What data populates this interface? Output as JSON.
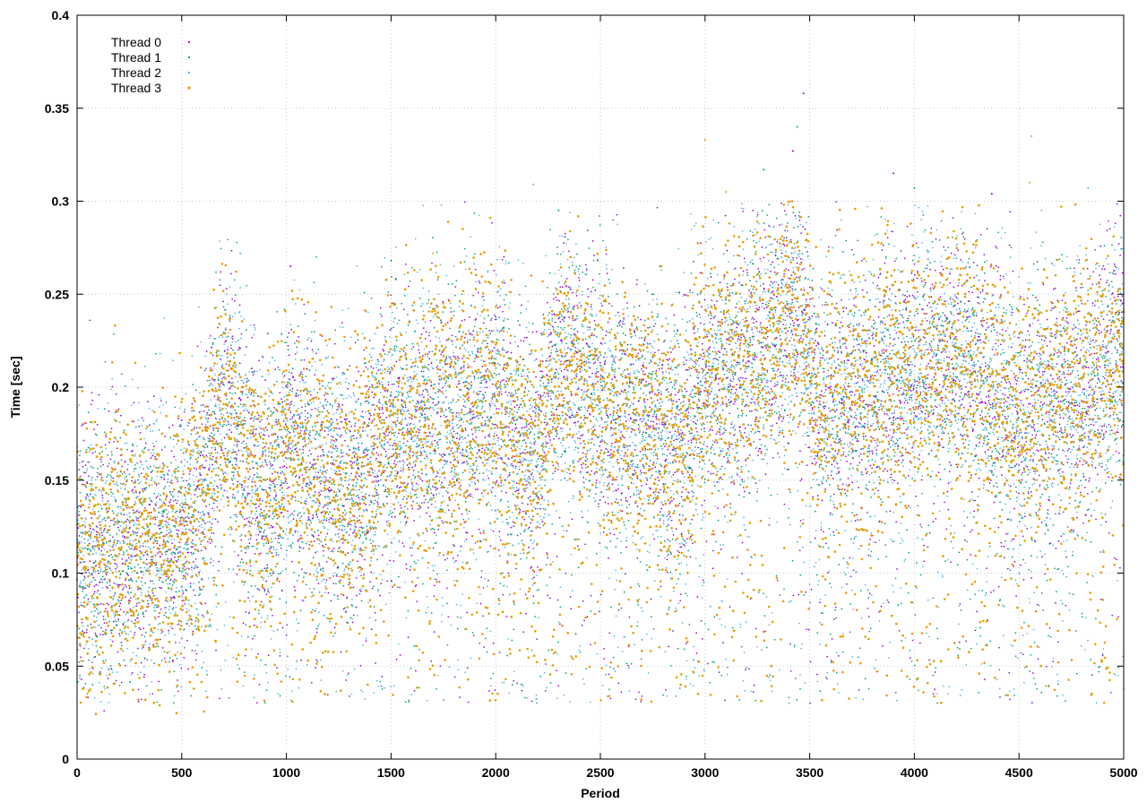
{
  "chart_data": {
    "type": "scatter",
    "title": "",
    "xlabel": "Period",
    "ylabel": "Time [sec]",
    "xlim": [
      0,
      5000
    ],
    "ylim": [
      0,
      0.4
    ],
    "x_ticks": [
      0,
      500,
      1000,
      1500,
      2000,
      2500,
      3000,
      3500,
      4000,
      4500,
      5000
    ],
    "y_ticks": [
      0,
      0.05,
      0.1,
      0.15,
      0.2,
      0.25,
      0.3,
      0.35,
      0.4
    ],
    "x_tick_labels": [
      "0",
      "500",
      "1000",
      "1500",
      "2000",
      "2500",
      "3000",
      "3500",
      "4000",
      "4500",
      "5000"
    ],
    "y_tick_labels": [
      "0",
      "0.05",
      "0.1",
      "0.15",
      "0.2",
      "0.25",
      "0.3",
      "0.35",
      "0.4"
    ],
    "grid": true,
    "legend_position": "top-left",
    "points_per_series": 5000,
    "trend_description": "Noisy scatter; times rise from about 0.11 s near period 0 to about 0.22 s near period 3400, dip to about 0.19 s around 3600-4000, and end near 0.21-0.22 s at period 5000; occasional dips toward 0.03-0.05 s and spikes up to 0.36 s.",
    "trend": {
      "x": [
        0,
        500,
        600,
        700,
        900,
        1000,
        1200,
        1300,
        1500,
        2000,
        2200,
        2300,
        2500,
        2900,
        3000,
        3300,
        3450,
        3550,
        4000,
        4200,
        4500,
        4800,
        5000
      ],
      "y": [
        0.11,
        0.125,
        0.14,
        0.2,
        0.135,
        0.17,
        0.155,
        0.145,
        0.18,
        0.19,
        0.16,
        0.215,
        0.19,
        0.17,
        0.2,
        0.22,
        0.235,
        0.19,
        0.21,
        0.215,
        0.185,
        0.2,
        0.22
      ]
    },
    "spikes": [
      [
        3470,
        0.358
      ],
      [
        3440,
        0.34
      ],
      [
        4560,
        0.335
      ],
      [
        3000,
        0.333
      ],
      [
        3420,
        0.327
      ],
      [
        3280,
        0.317
      ],
      [
        2180,
        0.309
      ],
      [
        4550,
        0.31
      ],
      [
        3900,
        0.315
      ],
      [
        4000,
        0.307
      ],
      [
        4830,
        0.307
      ],
      [
        3100,
        0.305
      ],
      [
        4370,
        0.304
      ],
      [
        2300,
        0.295
      ],
      [
        780,
        0.272
      ],
      [
        1700,
        0.272
      ],
      [
        1020,
        0.265
      ],
      [
        1500,
        0.268
      ]
    ],
    "series": [
      {
        "name": "Thread 0",
        "color": "#9400d3",
        "marker": "dot",
        "dip_frequency": 0.08,
        "jitter_sd": 0.035
      },
      {
        "name": "Thread 1",
        "color": "#009e73",
        "marker": "dot",
        "dip_frequency": 0.08,
        "jitter_sd": 0.035
      },
      {
        "name": "Thread 2",
        "color": "#56b4e9",
        "marker": "dot",
        "dip_frequency": 0.1,
        "jitter_sd": 0.037
      },
      {
        "name": "Thread 3",
        "color": "#e69f00",
        "marker": "dot",
        "dip_frequency": 0.11,
        "jitter_sd": 0.036
      }
    ]
  }
}
